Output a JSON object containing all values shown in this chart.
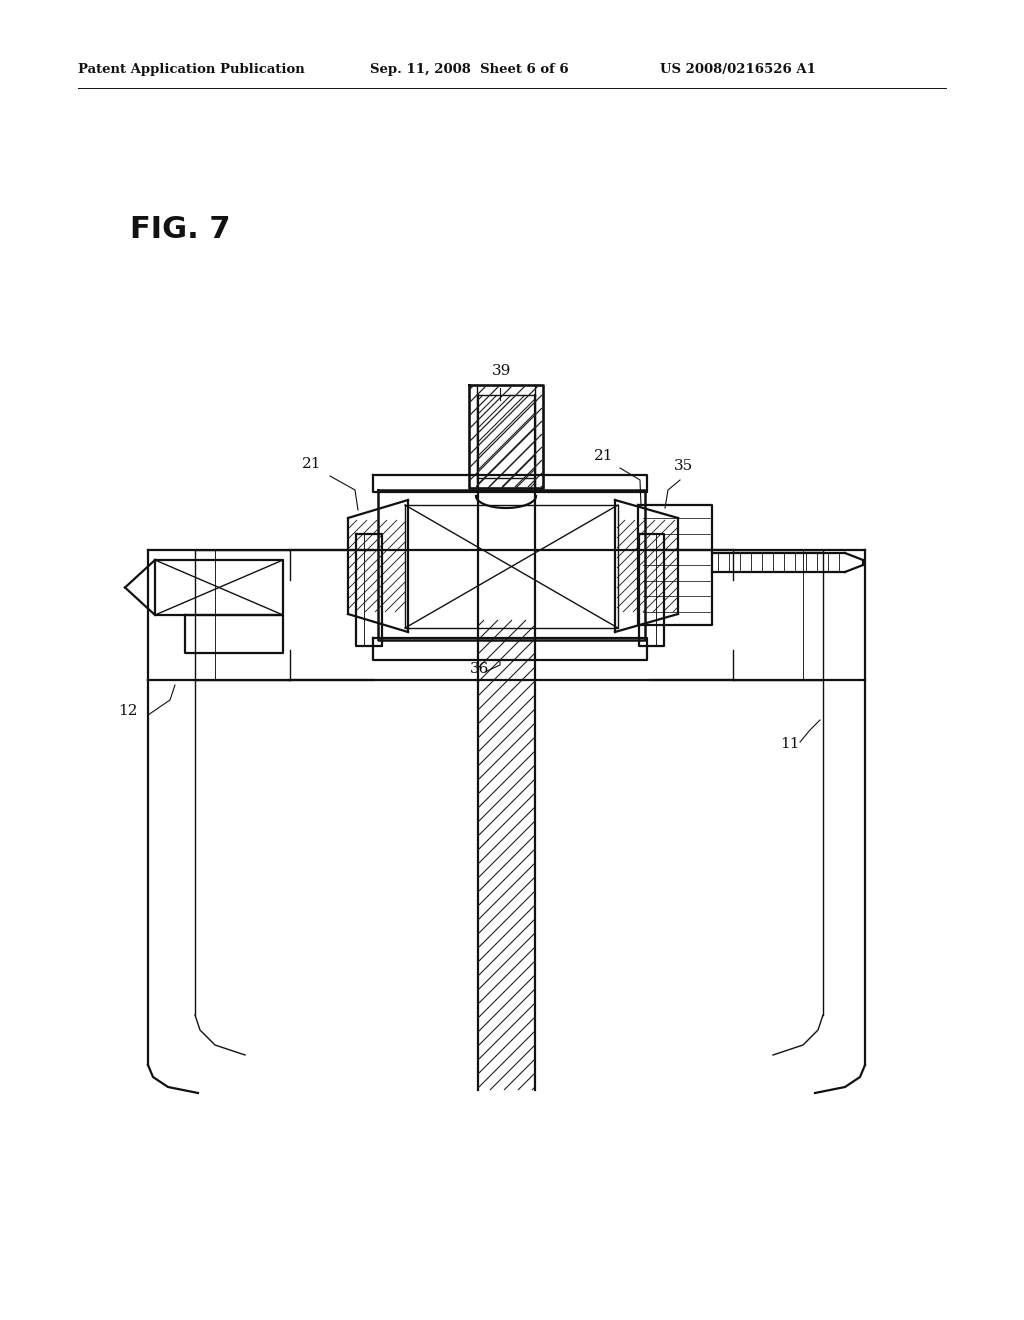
{
  "bg_color": "#ffffff",
  "line_color": "#111111",
  "header_left": "Patent Application Publication",
  "header_center": "Sep. 11, 2008  Sheet 6 of 6",
  "header_right": "US 2008/0216526 A1",
  "fig_label": "FIG. 7",
  "header_fontsize": 9.5,
  "fig_label_fontsize": 22,
  "label_fontsize": 11
}
